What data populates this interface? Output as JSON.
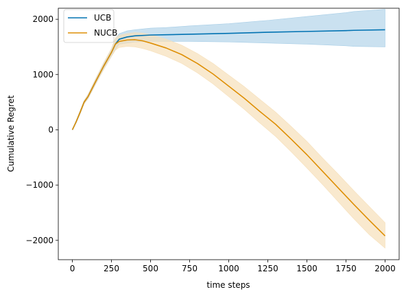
{
  "chart_data": {
    "type": "line",
    "title": "",
    "xlabel": "time steps",
    "ylabel": "Cumulative Regret",
    "xlim": [
      -90,
      2090
    ],
    "ylim": [
      -2350,
      2200
    ],
    "xticks": [
      0,
      250,
      500,
      750,
      1000,
      1250,
      1500,
      1750,
      2000
    ],
    "yticks": [
      -2000,
      -1000,
      0,
      1000,
      2000
    ],
    "xtick_labels": [
      "0",
      "250",
      "500",
      "750",
      "1000",
      "1250",
      "1500",
      "1750",
      "2000"
    ],
    "ytick_labels": [
      "−2000",
      "−1000",
      "0",
      "1000",
      "2000"
    ],
    "legend_position": "top-left",
    "grid": false,
    "series": [
      {
        "name": "UCB",
        "color": "#0072b2",
        "band_color": "#a6cde6",
        "x": [
          0,
          25,
          50,
          75,
          100,
          150,
          200,
          250,
          275,
          300,
          350,
          400,
          500,
          600,
          750,
          1000,
          1250,
          1500,
          1750,
          1800,
          2000
        ],
        "y": [
          0,
          150,
          320,
          500,
          600,
          880,
          1150,
          1400,
          1550,
          1640,
          1680,
          1700,
          1715,
          1720,
          1730,
          1745,
          1765,
          1780,
          1795,
          1800,
          1810
        ],
        "lower": [
          0,
          130,
          290,
          470,
          560,
          830,
          1090,
          1330,
          1450,
          1550,
          1570,
          1590,
          1600,
          1600,
          1600,
          1590,
          1570,
          1550,
          1520,
          1510,
          1500
        ],
        "upper": [
          0,
          170,
          350,
          530,
          640,
          930,
          1210,
          1470,
          1650,
          1740,
          1790,
          1810,
          1840,
          1850,
          1880,
          1920,
          1980,
          2050,
          2120,
          2140,
          2180
        ]
      },
      {
        "name": "NUCB",
        "color": "#de8f05",
        "band_color": "#f6dfb9",
        "x": [
          0,
          25,
          50,
          75,
          100,
          150,
          200,
          250,
          275,
          300,
          350,
          400,
          450,
          500,
          600,
          700,
          800,
          900,
          1000,
          1100,
          1200,
          1300,
          1400,
          1500,
          1600,
          1700,
          1800,
          1900,
          2000
        ],
        "y": [
          0,
          150,
          320,
          500,
          600,
          880,
          1150,
          1400,
          1550,
          1600,
          1625,
          1630,
          1610,
          1570,
          1480,
          1360,
          1200,
          1010,
          790,
          570,
          330,
          100,
          -170,
          -450,
          -750,
          -1050,
          -1350,
          -1640,
          -1920
        ],
        "lower": [
          0,
          130,
          290,
          470,
          560,
          830,
          1090,
          1330,
          1440,
          1490,
          1510,
          1500,
          1470,
          1430,
          1330,
          1200,
          1030,
          830,
          600,
          370,
          120,
          -120,
          -400,
          -690,
          -990,
          -1300,
          -1610,
          -1900,
          -2140
        ],
        "upper": [
          0,
          170,
          350,
          530,
          640,
          930,
          1210,
          1470,
          1660,
          1710,
          1740,
          1760,
          1750,
          1720,
          1640,
          1530,
          1380,
          1200,
          990,
          780,
          550,
          320,
          60,
          -210,
          -510,
          -800,
          -1100,
          -1390,
          -1680
        ]
      }
    ]
  }
}
